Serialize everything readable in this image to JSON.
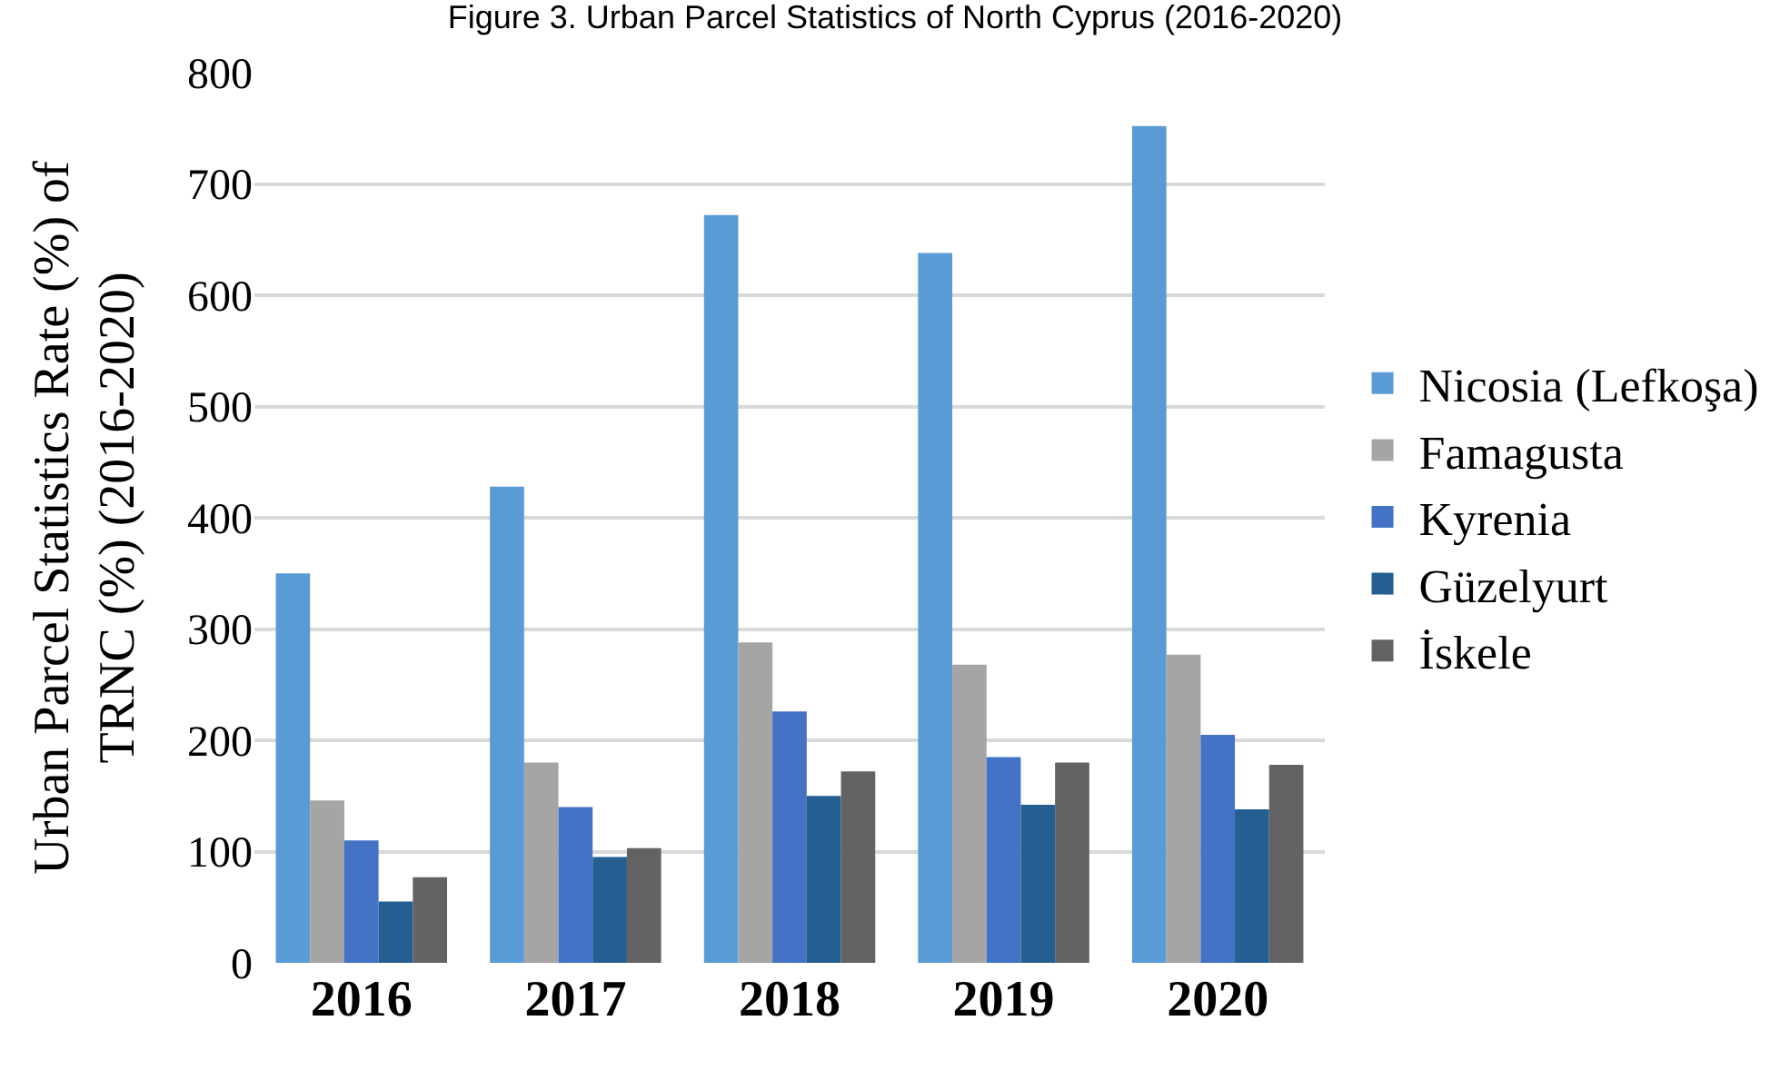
{
  "chart_data": {
    "type": "bar",
    "title": "Figure 3. Urban Parcel Statistics of North Cyprus (2016-2020)",
    "ylabel": "Urban Parcel Statistics Rate (%) of TRNC (%) (2016-2020)",
    "categories": [
      "2016",
      "2017",
      "2018",
      "2019",
      "2020"
    ],
    "series": [
      {
        "name": "Nicosia (Lefkoşa)",
        "color": "#5b9bd5",
        "values": [
          350,
          428,
          672,
          638,
          752
        ]
      },
      {
        "name": "Famagusta",
        "color": "#a5a5a5",
        "values": [
          146,
          180,
          288,
          268,
          277
        ]
      },
      {
        "name": "Kyrenia",
        "color": "#4472c4",
        "values": [
          110,
          140,
          226,
          185,
          205
        ]
      },
      {
        "name": "Güzelyurt",
        "color": "#255e91",
        "values": [
          55,
          95,
          150,
          142,
          138
        ]
      },
      {
        "name": "İskele",
        "color": "#636363",
        "values": [
          77,
          103,
          172,
          180,
          178
        ]
      }
    ],
    "ylim": [
      0,
      800
    ],
    "yticks": [
      0,
      100,
      200,
      300,
      400,
      500,
      600,
      700,
      800
    ],
    "grid": "y",
    "legend": "right"
  }
}
